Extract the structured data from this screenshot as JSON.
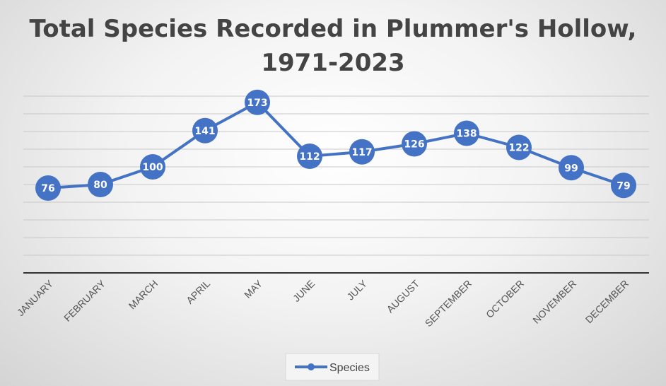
{
  "chart_data": {
    "type": "line",
    "title_lines": [
      "Total Species Recorded in Plummer's Hollow,",
      "1971-2023"
    ],
    "categories": [
      "JANUARY",
      "FEBRUARY",
      "MARCH",
      "APRIL",
      "MAY",
      "JUNE",
      "JULY",
      "AUGUST",
      "SEPTEMBER",
      "OCTOBER",
      "NOVEMBER",
      "DECEMBER"
    ],
    "series": [
      {
        "name": "Species",
        "values": [
          76,
          80,
          100,
          141,
          173,
          112,
          117,
          126,
          138,
          122,
          99,
          79
        ],
        "color": "#4472c4"
      }
    ],
    "ylim": [
      -20,
      180
    ],
    "y_gridline_step": 20,
    "y_tick_labels_shown": false,
    "data_labels": true,
    "legend_position": "bottom",
    "grid": true
  }
}
